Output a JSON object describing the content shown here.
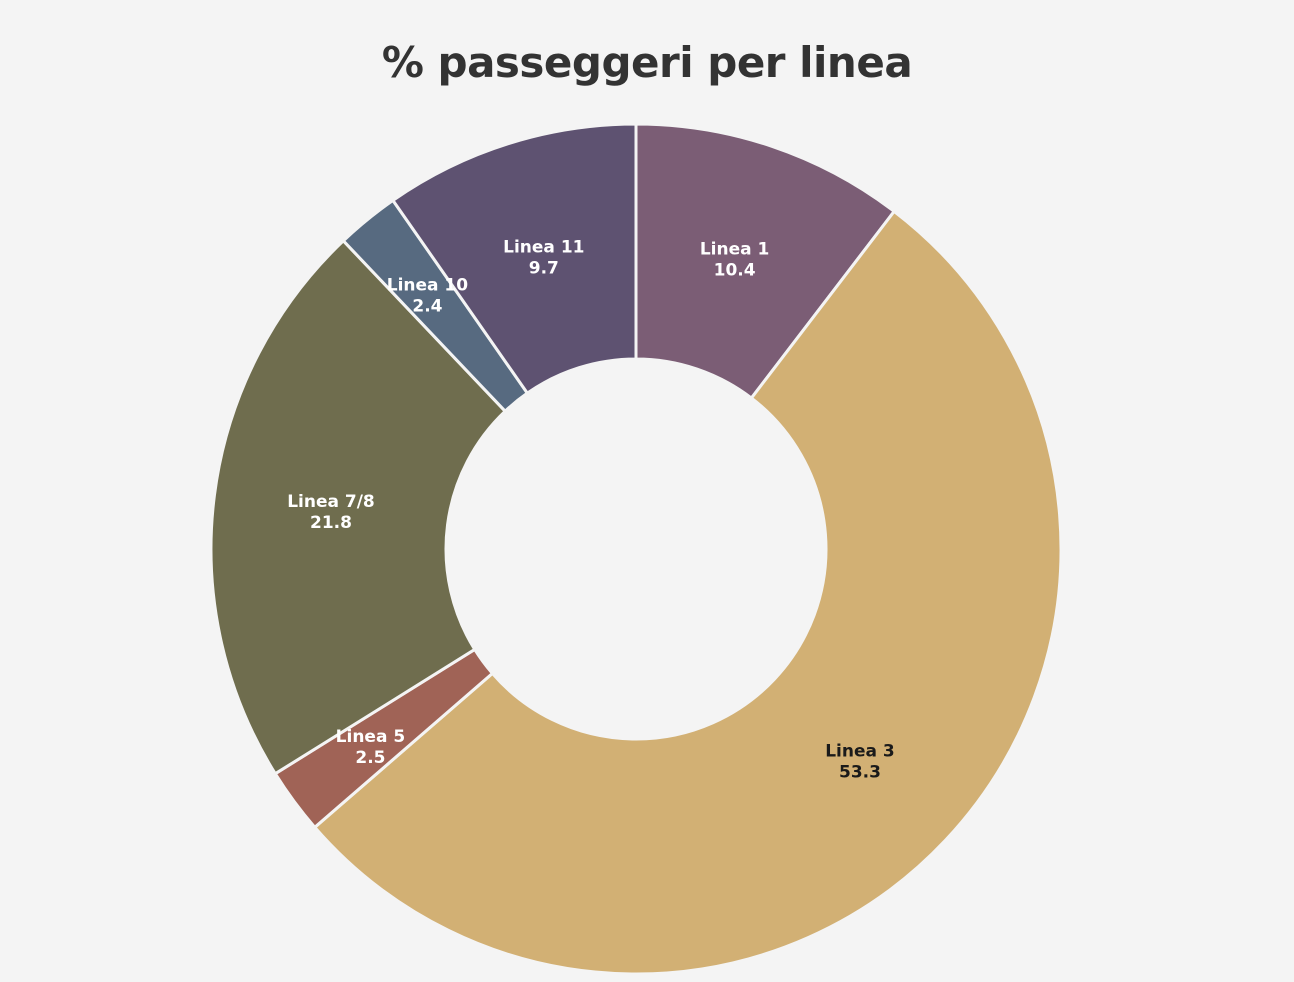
{
  "chart_data": {
    "type": "pie",
    "title": "% passeggeri per linea",
    "donut": true,
    "slices": [
      {
        "label": "Linea 1",
        "value": 10.4,
        "display": "10.4",
        "color": "#7b5d75",
        "text_color": "#ffffff"
      },
      {
        "label": "Linea 3",
        "value": 53.3,
        "display": "53.3",
        "color": "#d2b074",
        "text_color": "#1a1a1a"
      },
      {
        "label": "Linea 5",
        "value": 2.5,
        "display": "2.5",
        "color": "#a06356",
        "text_color": "#ffffff"
      },
      {
        "label": "Linea 7/8",
        "value": 21.8,
        "display": "21.8",
        "color": "#6f6d4e",
        "text_color": "#ffffff"
      },
      {
        "label": "Linea 10",
        "value": 2.4,
        "display": "2.4",
        "color": "#576a80",
        "text_color": "#ffffff"
      },
      {
        "label": "Linea 11",
        "value": 9.7,
        "display": "9.7",
        "color": "#5e5271",
        "text_color": "#ffffff"
      }
    ]
  }
}
